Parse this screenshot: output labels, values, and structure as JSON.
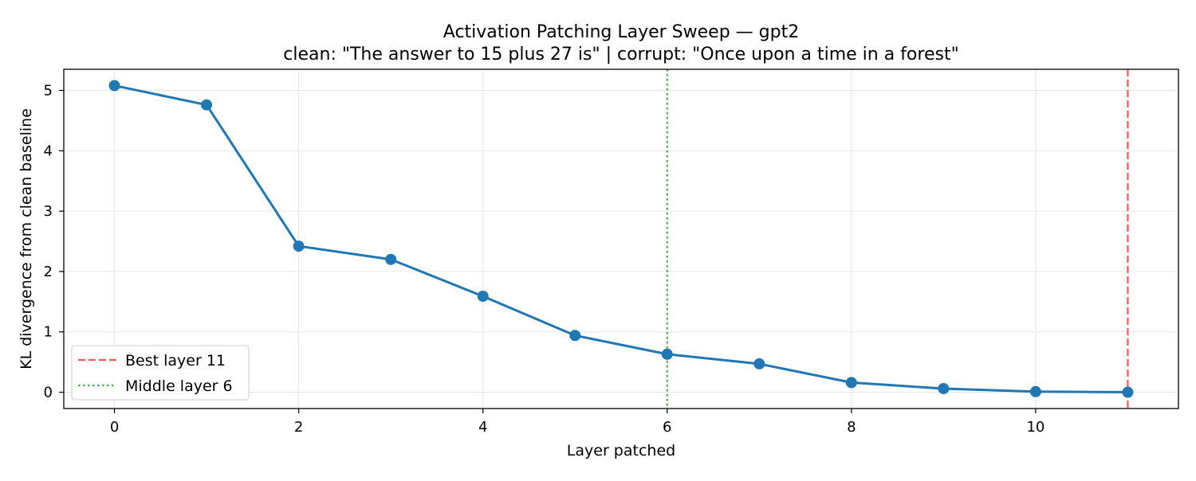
{
  "chart_data": {
    "type": "line",
    "title": "Activation Patching Layer Sweep — gpt2",
    "subtitle": "clean: \"The answer to 15 plus 27 is\" | corrupt: \"Once upon a time in a forest\"",
    "xlabel": "Layer patched",
    "ylabel": "KL divergence from clean baseline",
    "x": [
      0,
      1,
      2,
      3,
      4,
      5,
      6,
      7,
      8,
      9,
      10,
      11
    ],
    "series": [
      {
        "values": [
          5.08,
          4.76,
          2.42,
          2.2,
          1.59,
          0.94,
          0.63,
          0.47,
          0.16,
          0.06,
          0.01,
          0.0
        ],
        "color": "#1f77b4",
        "marker": "circle"
      }
    ],
    "xlim": [
      -0.55,
      11.55
    ],
    "ylim": [
      -0.27,
      5.35
    ],
    "xticks": [
      0,
      2,
      4,
      6,
      8,
      10
    ],
    "xtick_labels": [
      "0",
      "2",
      "4",
      "6",
      "8",
      "10"
    ],
    "yticks": [
      0,
      1,
      2,
      3,
      4,
      5
    ],
    "ytick_labels": [
      "0",
      "1",
      "2",
      "3",
      "4",
      "5"
    ],
    "grid": true,
    "reference_lines": [
      {
        "label": "Best layer 11",
        "x": 11,
        "color": "#ff5555",
        "style": "dashed"
      },
      {
        "label": "Middle layer 6",
        "x": 6,
        "color": "#4daa4d",
        "style": "dotted"
      }
    ],
    "legend_position": "lower-left"
  }
}
